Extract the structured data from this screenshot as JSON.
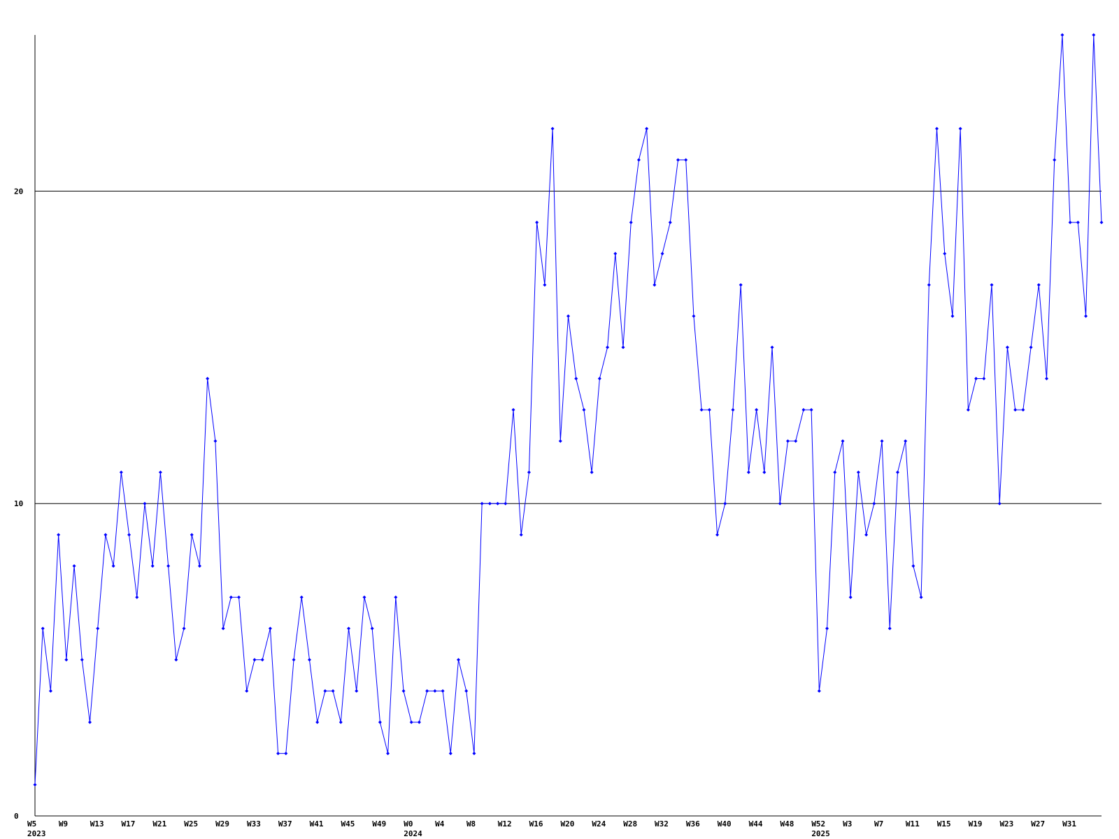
{
  "chart_data": {
    "type": "line",
    "categories": [
      "W5",
      null,
      null,
      null,
      "W9",
      null,
      null,
      null,
      "W13",
      null,
      null,
      null,
      "W17",
      null,
      null,
      null,
      "W21",
      null,
      null,
      null,
      "W25",
      null,
      null,
      null,
      "W29",
      null,
      null,
      null,
      "W33",
      null,
      null,
      null,
      "W37",
      null,
      null,
      null,
      "W41",
      null,
      null,
      null,
      "W45",
      null,
      null,
      null,
      "W49",
      null,
      null,
      null,
      "W0",
      null,
      null,
      null,
      "W4",
      null,
      null,
      null,
      "W8",
      null,
      null,
      null,
      "W12",
      null,
      null,
      null,
      "W16",
      null,
      null,
      null,
      "W20",
      null,
      null,
      null,
      "W24",
      null,
      null,
      null,
      "W28",
      null,
      null,
      null,
      "W32",
      null,
      null,
      null,
      "W36",
      null,
      null,
      null,
      "W40",
      null,
      null,
      null,
      "W44",
      null,
      null,
      null,
      "W48",
      null,
      null,
      null,
      "W52",
      null,
      null,
      null,
      "W3",
      null,
      null,
      null,
      "W7",
      null,
      null,
      null,
      "W11",
      null,
      null,
      null,
      "W15",
      null,
      null,
      null,
      "W19",
      null,
      null,
      null,
      "W23",
      null,
      null,
      null,
      "W27",
      null,
      null,
      null,
      "W31",
      null,
      null,
      null,
      null
    ],
    "x_group_labels": [
      {
        "label": "2023",
        "category": 0
      },
      {
        "label": "2024",
        "category": 48
      },
      {
        "label": "2025",
        "category": 100
      }
    ],
    "series": [
      {
        "color": "#0000ff",
        "values": [
          1,
          6,
          4,
          9,
          5,
          8,
          5,
          3,
          6,
          9,
          8,
          11,
          9,
          7,
          10,
          8,
          11,
          8,
          5,
          6,
          9,
          8,
          14,
          12,
          6,
          7,
          7,
          4,
          5,
          5,
          6,
          2,
          2,
          5,
          7,
          5,
          3,
          4,
          4,
          3,
          6,
          4,
          7,
          6,
          3,
          2,
          7,
          4,
          3,
          3,
          4,
          4,
          4,
          2,
          5,
          4,
          2,
          10,
          10,
          10,
          10,
          13,
          9,
          11,
          19,
          17,
          22,
          12,
          16,
          14,
          13,
          11,
          14,
          15,
          18,
          15,
          19,
          21,
          22,
          17,
          18,
          19,
          21,
          21,
          16,
          13,
          13,
          9,
          10,
          13,
          17,
          11,
          13,
          11,
          15,
          10,
          12,
          12,
          13,
          13,
          4,
          6,
          11,
          12,
          7,
          11,
          9,
          10,
          12,
          6,
          11,
          12,
          8,
          7,
          17,
          22,
          18,
          16,
          22,
          13,
          14,
          14,
          17,
          10,
          15,
          13,
          13,
          15,
          17,
          14,
          21,
          25,
          19,
          19,
          16,
          25,
          19
        ]
      }
    ],
    "ylim": [
      0,
      25
    ],
    "yticks": [
      0,
      10,
      20
    ],
    "grid": true
  }
}
